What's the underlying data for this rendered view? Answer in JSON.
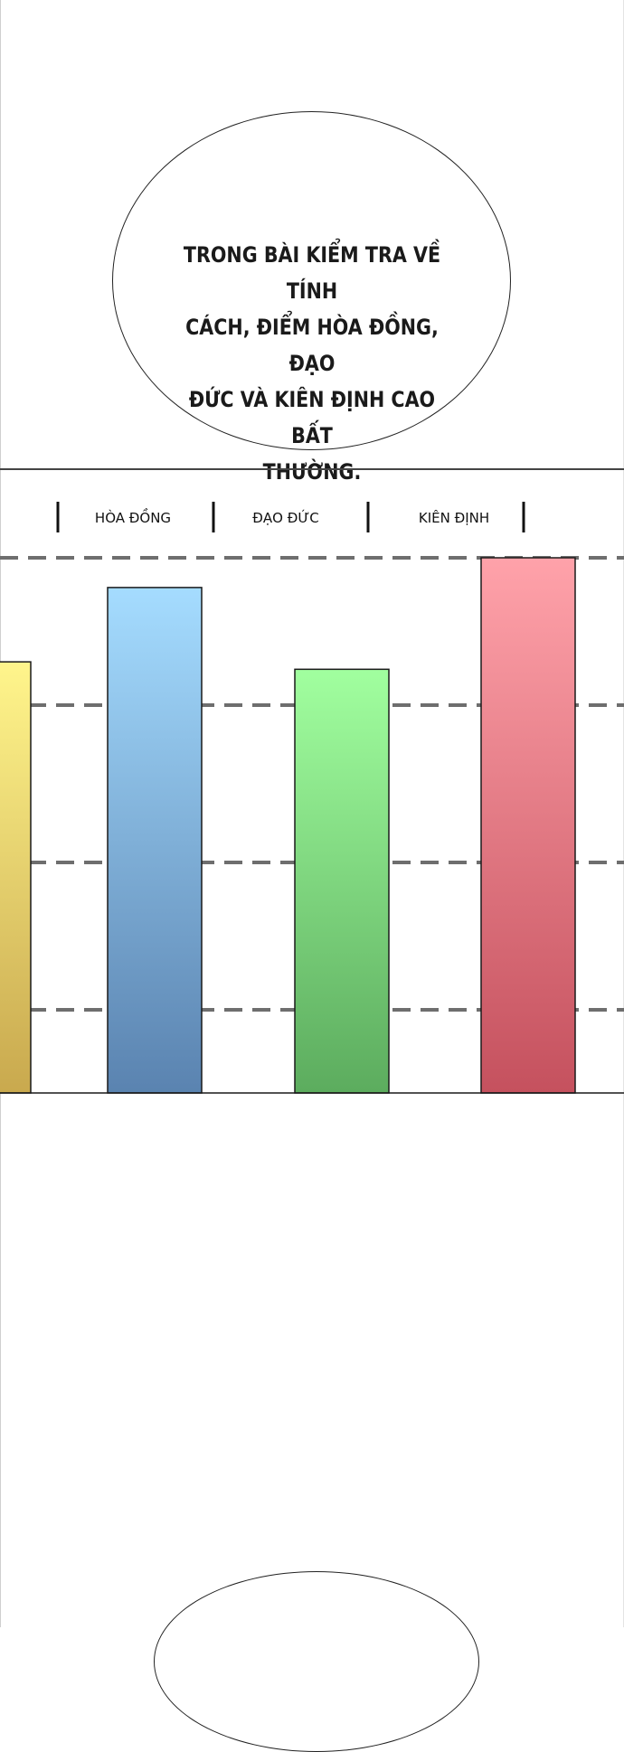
{
  "speech_bubble": {
    "lines": [
      "TRONG BÀI KIỂM TRA VỀ TÍNH",
      "CÁCH, ĐIỂM HÒA ĐỒNG, ĐẠO",
      "ĐỨC VÀ KIÊN ĐỊNH CAO BẤT",
      "THƯỜNG."
    ]
  },
  "chart_data": {
    "type": "bar",
    "categories": [
      "",
      "HÒA ĐỒNG",
      "ĐẠO ĐỨC",
      "KIÊN ĐỊNH"
    ],
    "values": [
      2.9,
      3.4,
      2.85,
      3.6
    ],
    "ylim": [
      0,
      3.6
    ],
    "grid": true,
    "bar_colors": [
      [
        "#fff58c",
        "#c9a94e"
      ],
      [
        "#a5dcff",
        "#5a83b0"
      ],
      [
        "#a1ff9f",
        "#5cac5e"
      ],
      [
        "#ffa2aa",
        "#c5515e"
      ]
    ]
  }
}
